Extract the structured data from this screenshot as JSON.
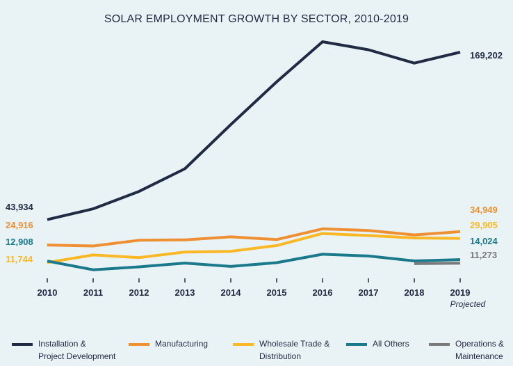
{
  "chart_data": {
    "type": "line",
    "title": "SOLAR EMPLOYMENT GROWTH BY SECTOR, 2010-2019",
    "x": [
      "2010",
      "2011",
      "2012",
      "2013",
      "2014",
      "2015",
      "2016",
      "2017",
      "2018",
      "2019"
    ],
    "x_note": "Projected",
    "ylim": [
      0,
      190000
    ],
    "grid": false,
    "legend_position": "bottom",
    "series": [
      {
        "name": "Installation & Project Development",
        "legend_lines": [
          "Installation &",
          "Project Development"
        ],
        "color": "#1f2a44",
        "values": [
          43934,
          52000,
          65000,
          82000,
          115000,
          147000,
          177000,
          171000,
          161000,
          169202
        ],
        "start_label": "43,934",
        "end_label": "169,202"
      },
      {
        "name": "Manufacturing",
        "legend_lines": [
          "Manufacturing"
        ],
        "color": "#ee8f32",
        "values": [
          24916,
          24200,
          28500,
          28800,
          31000,
          29000,
          37000,
          35800,
          32500,
          34949
        ],
        "start_label": "24,916",
        "end_label": "34,949"
      },
      {
        "name": "Wholesale Trade & Distribution",
        "legend_lines": [
          "Wholesale Trade &",
          "Distribution"
        ],
        "color": "#fbb824",
        "values": [
          11744,
          17500,
          15500,
          19700,
          20200,
          24500,
          33500,
          32000,
          30200,
          29905
        ],
        "start_label": "11,744",
        "end_label": "29,905"
      },
      {
        "name": "All Others",
        "legend_lines": [
          "All Others"
        ],
        "color": "#1a7a8c",
        "values": [
          12908,
          6400,
          8600,
          11400,
          8900,
          11700,
          18000,
          16700,
          13000,
          14024
        ],
        "start_label": "12,908",
        "end_label": "14,024"
      },
      {
        "name": "Operations & Maintenance",
        "legend_lines": [
          "Operations &",
          "Maintenance"
        ],
        "color": "#7a7a7a",
        "x_start": "2018",
        "values": [
          null,
          null,
          null,
          null,
          null,
          null,
          null,
          null,
          11000,
          11273
        ],
        "start_label": "",
        "end_label": "11,273"
      }
    ]
  }
}
